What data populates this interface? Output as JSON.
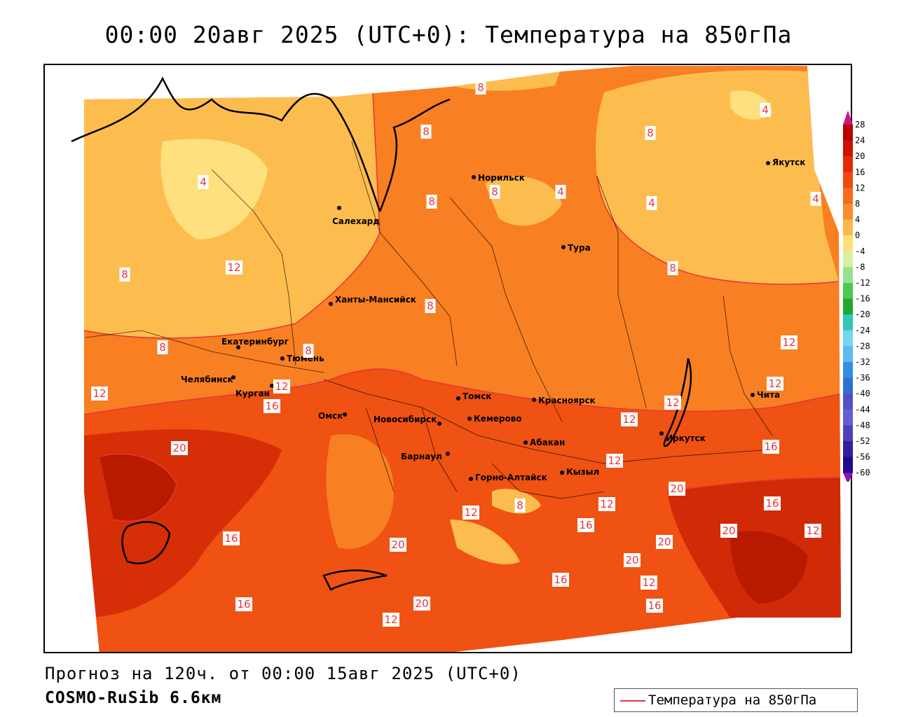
{
  "title": "00:00 20авг 2025 (UTC+0): Температура на 850гПа",
  "footer": {
    "forecast": "Прогноз на 120ч. от 00:00 15авг 2025 (UTC+0)",
    "model": "COSMO-RuSib 6.6км"
  },
  "legend": {
    "label": "Температура на 850гПа",
    "line_color": "#e8343a"
  },
  "colorbar": {
    "ticks": [
      "28",
      "24",
      "20",
      "16",
      "12",
      "8",
      "4",
      "0",
      "-4",
      "-8",
      "-12",
      "-16",
      "-20",
      "-24",
      "-28",
      "-32",
      "-36",
      "-40",
      "-44",
      "-48",
      "-52",
      "-56",
      "-60"
    ],
    "colors": [
      "#b80000",
      "#d01000",
      "#e52a00",
      "#f04a10",
      "#f56b1a",
      "#fa8c2a",
      "#fdb84a",
      "#fde07a",
      "#d8f0a0",
      "#98e090",
      "#50c850",
      "#20a830",
      "#30c8b8",
      "#70d8f0",
      "#60b8f0",
      "#3090e0",
      "#3070d0",
      "#5050c8",
      "#6060d0",
      "#5040b8",
      "#3020a0",
      "#200890"
    ],
    "top_color": "#d0108a",
    "bottom_color": "#9010c0"
  },
  "cities": [
    {
      "name": "Норильск"
    },
    {
      "name": "Якутск"
    },
    {
      "name": "Салехард"
    },
    {
      "name": "Тура"
    },
    {
      "name": "Ханты-Мансийск"
    },
    {
      "name": "Екатеринбург"
    },
    {
      "name": "Тюмень"
    },
    {
      "name": "Челябинск"
    },
    {
      "name": "Курган"
    },
    {
      "name": "Омск"
    },
    {
      "name": "Новосибирск"
    },
    {
      "name": "Томск"
    },
    {
      "name": "Кемерово"
    },
    {
      "name": "Красноярск"
    },
    {
      "name": "Абакан"
    },
    {
      "name": "Барнаул"
    },
    {
      "name": "Горно-Алтайск"
    },
    {
      "name": "Кызыл"
    },
    {
      "name": "Иркутск"
    },
    {
      "name": "Чита"
    }
  ],
  "isotherm_labels": [
    "8",
    "4",
    "8",
    "8",
    "8",
    "8",
    "4",
    "4",
    "4",
    "4",
    "8",
    "12",
    "8",
    "8",
    "8",
    "8",
    "12",
    "12",
    "12",
    "12",
    "12",
    "16",
    "20",
    "12",
    "16",
    "12",
    "12",
    "8",
    "12",
    "20",
    "16",
    "20",
    "12",
    "16",
    "20",
    "16",
    "20",
    "20",
    "12",
    "16",
    "16",
    "16",
    "20",
    "12"
  ]
}
